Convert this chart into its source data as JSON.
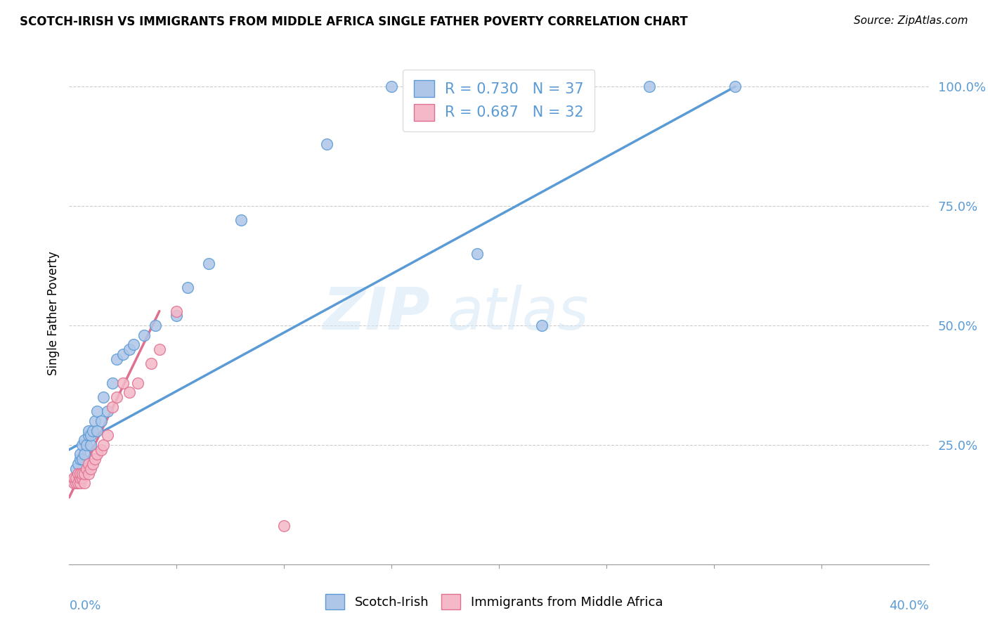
{
  "title": "SCOTCH-IRISH VS IMMIGRANTS FROM MIDDLE AFRICA SINGLE FATHER POVERTY CORRELATION CHART",
  "source": "Source: ZipAtlas.com",
  "ylabel": "Single Father Poverty",
  "x_label_bottom_left": "0.0%",
  "x_label_bottom_right": "40.0%",
  "y_ticks_right": [
    "25.0%",
    "50.0%",
    "75.0%",
    "100.0%"
  ],
  "legend_blue_r": "R = 0.730",
  "legend_blue_n": "N = 37",
  "legend_pink_r": "R = 0.687",
  "legend_pink_n": "N = 32",
  "legend_label_blue": "Scotch-Irish",
  "legend_label_pink": "Immigrants from Middle Africa",
  "blue_fill_color": "#aec6e8",
  "blue_edge_color": "#5b9bd5",
  "pink_fill_color": "#f4b8c8",
  "pink_edge_color": "#e07090",
  "blue_line_color": "#5b9bd5",
  "pink_line_color": "#e07090",
  "watermark_color": "#d6e8f7",
  "watermark": "ZIPatlas",
  "blue_scatter_x": [
    0.003,
    0.004,
    0.005,
    0.005,
    0.006,
    0.006,
    0.007,
    0.007,
    0.008,
    0.009,
    0.009,
    0.01,
    0.01,
    0.011,
    0.012,
    0.013,
    0.013,
    0.015,
    0.016,
    0.018,
    0.02,
    0.022,
    0.025,
    0.028,
    0.03,
    0.035,
    0.04,
    0.05,
    0.055,
    0.065,
    0.08,
    0.12,
    0.15,
    0.19,
    0.22,
    0.27,
    0.31
  ],
  "blue_scatter_y": [
    0.2,
    0.21,
    0.22,
    0.23,
    0.22,
    0.25,
    0.23,
    0.26,
    0.25,
    0.27,
    0.28,
    0.25,
    0.27,
    0.28,
    0.3,
    0.28,
    0.32,
    0.3,
    0.35,
    0.32,
    0.38,
    0.43,
    0.44,
    0.45,
    0.46,
    0.48,
    0.5,
    0.52,
    0.58,
    0.63,
    0.72,
    0.88,
    1.0,
    0.65,
    0.5,
    1.0,
    1.0
  ],
  "pink_scatter_x": [
    0.002,
    0.002,
    0.003,
    0.003,
    0.004,
    0.004,
    0.005,
    0.005,
    0.005,
    0.006,
    0.006,
    0.007,
    0.007,
    0.008,
    0.009,
    0.009,
    0.01,
    0.011,
    0.012,
    0.013,
    0.015,
    0.016,
    0.018,
    0.02,
    0.022,
    0.025,
    0.028,
    0.032,
    0.038,
    0.042,
    0.05,
    0.1
  ],
  "pink_scatter_y": [
    0.17,
    0.18,
    0.17,
    0.18,
    0.17,
    0.19,
    0.17,
    0.18,
    0.19,
    0.18,
    0.19,
    0.17,
    0.19,
    0.2,
    0.19,
    0.21,
    0.2,
    0.21,
    0.22,
    0.23,
    0.24,
    0.25,
    0.27,
    0.33,
    0.35,
    0.38,
    0.36,
    0.38,
    0.42,
    0.45,
    0.53,
    0.08
  ],
  "blue_line_x": [
    0.0,
    0.31
  ],
  "blue_line_y": [
    0.24,
    1.0
  ],
  "pink_line_x": [
    0.0,
    0.042
  ],
  "pink_line_y": [
    0.14,
    0.53
  ],
  "xlim": [
    0.0,
    0.4
  ],
  "ylim": [
    0.0,
    1.05
  ],
  "figsize": [
    14.06,
    8.92
  ],
  "dpi": 100
}
